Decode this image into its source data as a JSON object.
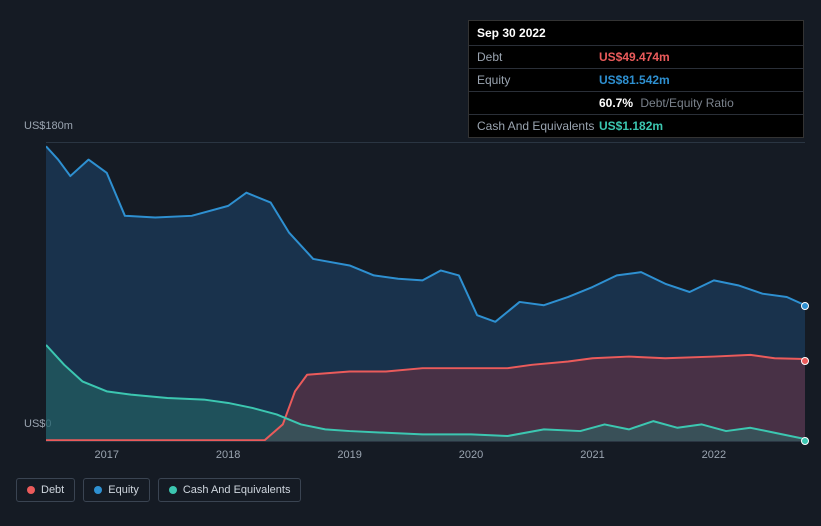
{
  "tooltip": {
    "date": "Sep 30 2022",
    "rows": [
      {
        "label": "Debt",
        "value": "US$49.474m",
        "cls": "debt"
      },
      {
        "label": "Equity",
        "value": "US$81.542m",
        "cls": "equity"
      }
    ],
    "ratio_pct": "60.7%",
    "ratio_label": "Debt/Equity Ratio",
    "cash_row": {
      "label": "Cash And Equivalents",
      "value": "US$1.182m",
      "cls": "cash"
    }
  },
  "chart": {
    "type": "area",
    "background_color": "#151b24",
    "grid_color": "#2a3542",
    "y_labels": {
      "top": "US$180m",
      "bottom": "US$0"
    },
    "ylim": [
      0,
      180
    ],
    "xlim": [
      2016.5,
      2022.75
    ],
    "x_ticks": [
      2017,
      2018,
      2019,
      2020,
      2021,
      2022
    ],
    "series": {
      "equity": {
        "color": "#2e90d1",
        "fill": "rgba(30,70,110,0.55)",
        "line_width": 2,
        "data": [
          [
            2016.5,
            178
          ],
          [
            2016.6,
            170
          ],
          [
            2016.7,
            160
          ],
          [
            2016.85,
            170
          ],
          [
            2017.0,
            162
          ],
          [
            2017.15,
            136
          ],
          [
            2017.4,
            135
          ],
          [
            2017.7,
            136
          ],
          [
            2018.0,
            142
          ],
          [
            2018.15,
            150
          ],
          [
            2018.35,
            144
          ],
          [
            2018.5,
            126
          ],
          [
            2018.7,
            110
          ],
          [
            2019.0,
            106
          ],
          [
            2019.2,
            100
          ],
          [
            2019.4,
            98
          ],
          [
            2019.6,
            97
          ],
          [
            2019.75,
            103
          ],
          [
            2019.9,
            100
          ],
          [
            2020.05,
            76
          ],
          [
            2020.2,
            72
          ],
          [
            2020.4,
            84
          ],
          [
            2020.6,
            82
          ],
          [
            2020.8,
            87
          ],
          [
            2021.0,
            93
          ],
          [
            2021.2,
            100
          ],
          [
            2021.4,
            102
          ],
          [
            2021.6,
            95
          ],
          [
            2021.8,
            90
          ],
          [
            2022.0,
            97
          ],
          [
            2022.2,
            94
          ],
          [
            2022.4,
            89
          ],
          [
            2022.6,
            87
          ],
          [
            2022.75,
            82
          ]
        ]
      },
      "debt": {
        "color": "#eb5b5b",
        "fill": "rgba(160,50,60,0.35)",
        "line_width": 2,
        "data": [
          [
            2016.5,
            0.5
          ],
          [
            2017.0,
            0.5
          ],
          [
            2017.5,
            0.5
          ],
          [
            2018.0,
            0.5
          ],
          [
            2018.3,
            0.5
          ],
          [
            2018.45,
            10
          ],
          [
            2018.55,
            30
          ],
          [
            2018.65,
            40
          ],
          [
            2019.0,
            42
          ],
          [
            2019.3,
            42
          ],
          [
            2019.6,
            44
          ],
          [
            2020.0,
            44
          ],
          [
            2020.3,
            44
          ],
          [
            2020.5,
            46
          ],
          [
            2020.8,
            48
          ],
          [
            2021.0,
            50
          ],
          [
            2021.3,
            51
          ],
          [
            2021.6,
            50
          ],
          [
            2022.0,
            51
          ],
          [
            2022.3,
            52
          ],
          [
            2022.5,
            50
          ],
          [
            2022.75,
            49.5
          ]
        ]
      },
      "cash": {
        "color": "#3cc7b1",
        "fill": "rgba(40,120,110,0.45)",
        "line_width": 2,
        "data": [
          [
            2016.5,
            58
          ],
          [
            2016.65,
            46
          ],
          [
            2016.8,
            36
          ],
          [
            2017.0,
            30
          ],
          [
            2017.2,
            28
          ],
          [
            2017.5,
            26
          ],
          [
            2017.8,
            25
          ],
          [
            2018.0,
            23
          ],
          [
            2018.2,
            20
          ],
          [
            2018.4,
            16
          ],
          [
            2018.6,
            10
          ],
          [
            2018.8,
            7
          ],
          [
            2019.0,
            6
          ],
          [
            2019.3,
            5
          ],
          [
            2019.6,
            4
          ],
          [
            2020.0,
            4
          ],
          [
            2020.3,
            3
          ],
          [
            2020.6,
            7
          ],
          [
            2020.9,
            6
          ],
          [
            2021.1,
            10
          ],
          [
            2021.3,
            7
          ],
          [
            2021.5,
            12
          ],
          [
            2021.7,
            8
          ],
          [
            2021.9,
            10
          ],
          [
            2022.1,
            6
          ],
          [
            2022.3,
            8
          ],
          [
            2022.5,
            5
          ],
          [
            2022.75,
            1.2
          ]
        ]
      }
    },
    "legend": [
      {
        "label": "Debt",
        "color": "#eb5b5b",
        "key": "debt"
      },
      {
        "label": "Equity",
        "color": "#2e90d1",
        "key": "equity"
      },
      {
        "label": "Cash And Equivalents",
        "color": "#3cc7b1",
        "key": "cash"
      }
    ]
  }
}
